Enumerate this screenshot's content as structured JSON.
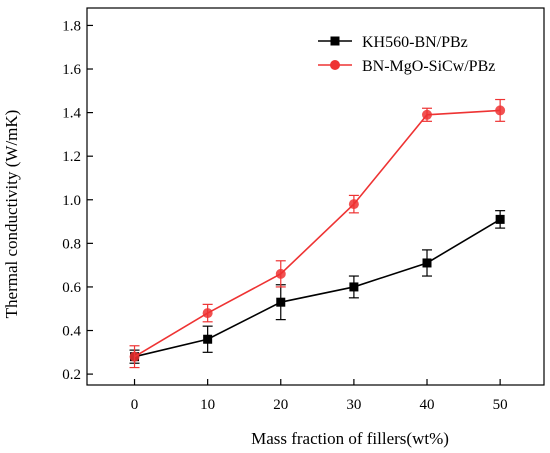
{
  "chart_data": {
    "type": "line",
    "title": "",
    "xlabel": "Mass fraction of fillers(wt%)",
    "ylabel": "Thermal conductivity (W/mK)",
    "x": [
      0,
      10,
      20,
      30,
      40,
      50
    ],
    "xticks": [
      "0",
      "10",
      "20",
      "30",
      "40",
      "50"
    ],
    "yticks": [
      "0.2",
      "0.4",
      "0.6",
      "0.8",
      "1.0",
      "1.2",
      "1.4",
      "1.6",
      "1.8"
    ],
    "xlim": [
      -6.5,
      56
    ],
    "ylim": [
      0.15,
      1.88
    ],
    "grid": false,
    "legend_position": "top-right",
    "series": [
      {
        "name": "KH560-BN/PBz",
        "color": "#000000",
        "marker": "square",
        "values": [
          0.28,
          0.36,
          0.53,
          0.6,
          0.71,
          0.91
        ],
        "errors": [
          0.03,
          0.06,
          0.08,
          0.05,
          0.06,
          0.04
        ]
      },
      {
        "name": "BN-MgO-SiCw/PBz",
        "color": "#ee3333",
        "marker": "circle",
        "values": [
          0.28,
          0.48,
          0.66,
          0.98,
          1.39,
          1.41
        ],
        "errors": [
          0.05,
          0.04,
          0.06,
          0.04,
          0.03,
          0.05
        ]
      }
    ]
  }
}
